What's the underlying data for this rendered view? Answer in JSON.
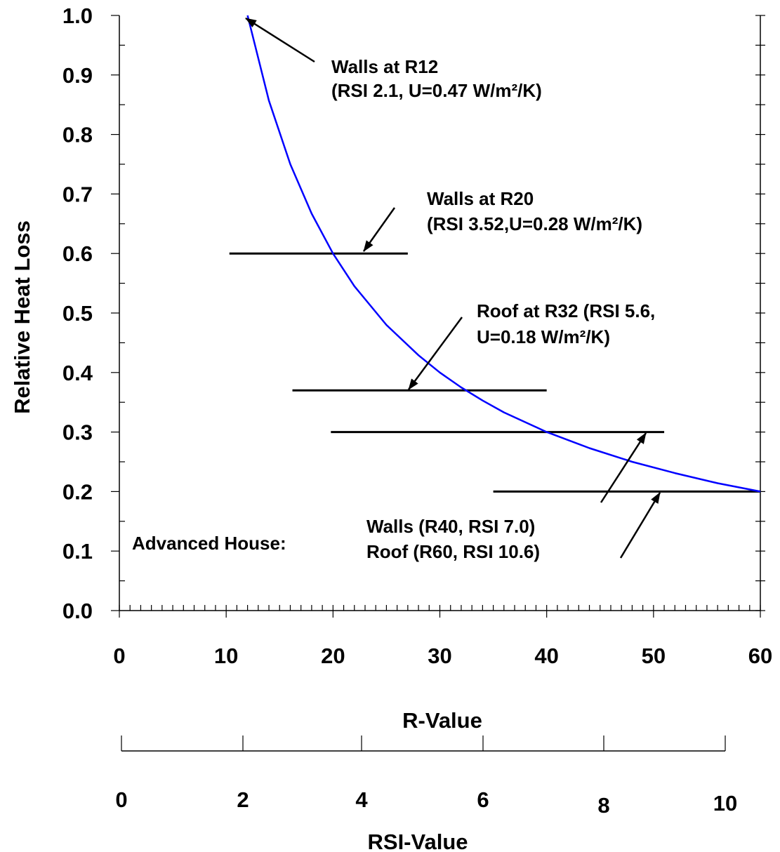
{
  "chart_data": {
    "type": "line",
    "title": "",
    "xlabel": "R-Value",
    "ylabel": "Relative Heat Loss",
    "x2label": "RSI-Value",
    "xlim": [
      0,
      60
    ],
    "ylim": [
      0,
      1
    ],
    "x_ticks": [
      "0",
      "10",
      "20",
      "30",
      "40",
      "50",
      "60"
    ],
    "y_ticks": [
      "0.0",
      "0.1",
      "0.2",
      "0.3",
      "0.4",
      "0.5",
      "0.6",
      "0.7",
      "0.8",
      "0.9",
      "1.0"
    ],
    "x2_ticks": [
      "0",
      "2",
      "4",
      "6",
      "8",
      "10"
    ],
    "grid": false,
    "series": [
      {
        "name": "",
        "color": "#0000ff",
        "x": [
          12,
          14,
          16,
          18,
          20,
          22,
          25,
          28,
          30,
          32,
          34,
          36,
          40,
          44,
          48,
          52,
          56,
          60
        ],
        "y": [
          1.0,
          0.857,
          0.75,
          0.667,
          0.6,
          0.545,
          0.48,
          0.429,
          0.4,
          0.375,
          0.353,
          0.333,
          0.3,
          0.273,
          0.25,
          0.231,
          0.214,
          0.2
        ]
      }
    ],
    "reference_lines": [
      {
        "y": 0.6,
        "x_start": 10.3,
        "x_end": 27
      },
      {
        "y": 0.37,
        "x_start": 16.2,
        "x_end": 40
      },
      {
        "y": 0.3,
        "x_start": 19.8,
        "x_end": 51
      },
      {
        "y": 0.2,
        "x_start": 35,
        "x_end": 60
      }
    ],
    "annotations": [
      {
        "lines": [
          "Walls at R12",
          "(RSI 2.1, U=0.47 W/m²/K)"
        ]
      },
      {
        "lines": [
          "Walls at R20",
          "(RSI 3.52,U=0.28 W/m²/K)"
        ]
      },
      {
        "lines": [
          "Roof  at R32 (RSI 5.6,",
          "U=0.18 W/m²/K)"
        ]
      },
      {
        "lines": [
          "Advanced House:"
        ]
      },
      {
        "lines": [
          "Walls (R40, RSI 7.0)",
          "Roof (R60, RSI 10.6)"
        ]
      }
    ]
  }
}
